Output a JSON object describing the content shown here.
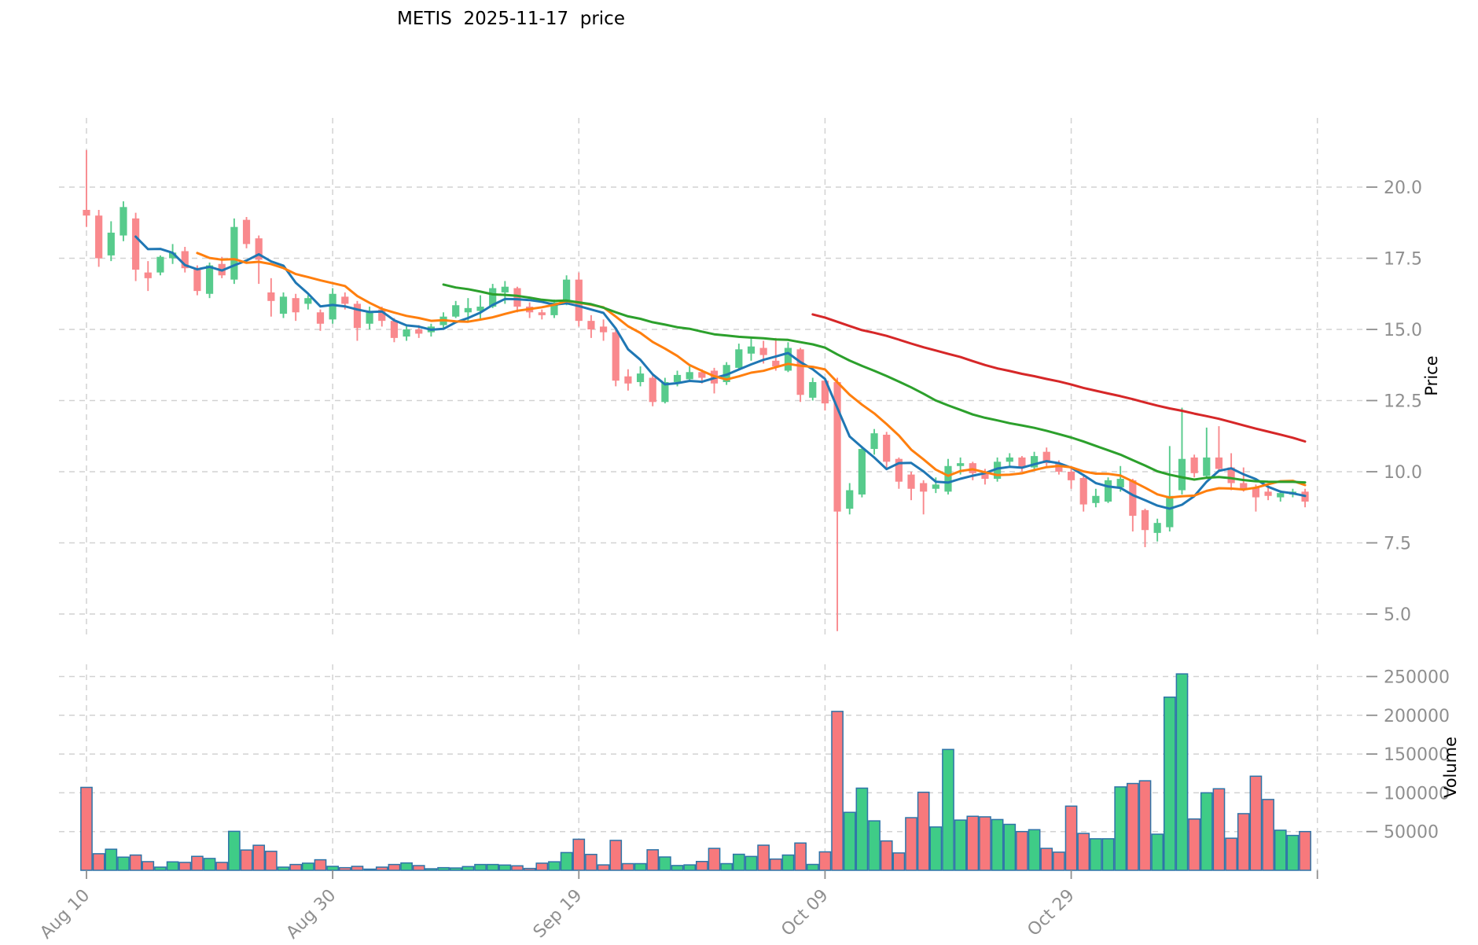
{
  "title": "METIS  2025-11-17  price",
  "price_axis": {
    "label": "Price",
    "ticks": [
      20.0,
      17.5,
      15.0,
      12.5,
      10.0,
      7.5,
      5.0
    ],
    "tick_labels": [
      "20.0",
      "17.5",
      "15.0",
      "12.5",
      "10.0",
      "7.5",
      "5.0"
    ]
  },
  "volume_axis": {
    "label": "Volume",
    "ticks": [
      250000,
      200000,
      150000,
      100000,
      50000
    ],
    "tick_labels": [
      "250000",
      "200000",
      "150000",
      "100000",
      "50000"
    ]
  },
  "x_axis": {
    "tick_days": [
      0,
      20,
      40,
      60,
      80,
      100
    ],
    "tick_labels": [
      "Aug 10",
      "Aug 30",
      "Sep 19",
      "Oct 09",
      "Oct 29",
      ""
    ]
  },
  "colors": {
    "candle_up": "#57cb8c",
    "candle_down": "#f9898d",
    "volume_up": "#3fcc87",
    "volume_down": "#f7797c",
    "volume_edge": "#2e74a8",
    "grid": "#d2d2d2",
    "tick_text": "#8f8f8f",
    "tick_mark": "#8f8f8f",
    "title_text": "#000000"
  },
  "chart_data": {
    "type": "candlestick",
    "title": "METIS  2025-11-17  price",
    "ylabel": "Price",
    "ylabel_lower": "Volume",
    "grid": "dashed",
    "price_ylim": [
      4.25,
      22.4
    ],
    "volume_ylim": [
      0,
      262000
    ],
    "moving_averages": [
      {
        "name": "sma5",
        "window": 5,
        "color": "#1f77b4"
      },
      {
        "name": "sma10",
        "window": 10,
        "color": "#ff7f0e"
      },
      {
        "name": "sma30",
        "window": 30,
        "color": "#2ca02c"
      },
      {
        "name": "sma60",
        "window": 60,
        "color": "#d62728"
      }
    ],
    "columns": [
      "date",
      "open",
      "high",
      "low",
      "close",
      "volume"
    ],
    "ohlcv": [
      [
        "2025-08-10",
        19.2,
        21.3,
        18.6,
        19.0,
        107000
      ],
      [
        "2025-08-11",
        19.0,
        19.2,
        17.2,
        17.5,
        21400
      ],
      [
        "2025-08-12",
        17.6,
        18.8,
        17.4,
        18.4,
        27200
      ],
      [
        "2025-08-13",
        18.3,
        19.5,
        18.1,
        19.3,
        17000
      ],
      [
        "2025-08-14",
        18.9,
        19.1,
        16.7,
        17.1,
        19700
      ],
      [
        "2025-08-15",
        17.0,
        17.4,
        16.35,
        16.8,
        11200
      ],
      [
        "2025-08-16",
        17.0,
        17.6,
        16.9,
        17.55,
        4100
      ],
      [
        "2025-08-17",
        17.5,
        18.0,
        17.3,
        17.7,
        10900
      ],
      [
        "2025-08-18",
        17.75,
        17.9,
        17.0,
        17.15,
        10200
      ],
      [
        "2025-08-19",
        17.15,
        17.25,
        16.2,
        16.35,
        18000
      ],
      [
        "2025-08-20",
        16.25,
        17.35,
        16.1,
        17.25,
        15300
      ],
      [
        "2025-08-21",
        17.3,
        17.55,
        16.8,
        16.9,
        10200
      ],
      [
        "2025-08-22",
        16.75,
        18.9,
        16.6,
        18.6,
        50300
      ],
      [
        "2025-08-23",
        18.85,
        18.95,
        17.85,
        18.0,
        26200
      ],
      [
        "2025-08-24",
        18.2,
        18.3,
        16.6,
        17.45,
        32300
      ],
      [
        "2025-08-25",
        16.3,
        16.8,
        15.45,
        16.0,
        24500
      ],
      [
        "2025-08-26",
        15.55,
        16.3,
        15.4,
        16.15,
        4100
      ],
      [
        "2025-08-27",
        16.1,
        16.25,
        15.3,
        15.6,
        7500
      ],
      [
        "2025-08-28",
        15.9,
        16.2,
        15.7,
        16.1,
        9200
      ],
      [
        "2025-08-29",
        15.6,
        15.7,
        14.95,
        15.2,
        13600
      ],
      [
        "2025-08-30",
        15.35,
        16.45,
        15.2,
        16.25,
        5100
      ],
      [
        "2025-08-31",
        16.15,
        16.3,
        15.7,
        15.9,
        3400
      ],
      [
        "2025-09-01",
        15.9,
        16.0,
        14.6,
        15.05,
        5100
      ],
      [
        "2025-09-02",
        15.2,
        15.8,
        15.0,
        15.65,
        1500
      ],
      [
        "2025-09-03",
        15.7,
        15.8,
        15.1,
        15.3,
        4100
      ],
      [
        "2025-09-04",
        15.3,
        15.4,
        14.55,
        14.7,
        7500
      ],
      [
        "2025-09-05",
        14.75,
        15.1,
        14.6,
        15.0,
        9500
      ],
      [
        "2025-09-06",
        15.0,
        15.15,
        14.7,
        14.85,
        6100
      ],
      [
        "2025-09-07",
        14.9,
        15.2,
        14.75,
        15.1,
        2000
      ],
      [
        "2025-09-08",
        15.15,
        15.6,
        15.05,
        15.45,
        3400
      ],
      [
        "2025-09-09",
        15.45,
        16.0,
        15.4,
        15.85,
        3000
      ],
      [
        "2025-09-10",
        15.6,
        16.1,
        15.3,
        15.75,
        4800
      ],
      [
        "2025-09-11",
        15.65,
        16.2,
        15.35,
        15.8,
        7500
      ],
      [
        "2025-09-12",
        15.8,
        16.6,
        15.75,
        16.45,
        7500
      ],
      [
        "2025-09-13",
        16.3,
        16.7,
        15.9,
        16.5,
        6800
      ],
      [
        "2025-09-14",
        16.45,
        16.5,
        15.6,
        15.8,
        5800
      ],
      [
        "2025-09-15",
        15.8,
        15.95,
        15.4,
        15.6,
        2400
      ],
      [
        "2025-09-16",
        15.6,
        15.7,
        15.35,
        15.5,
        9200
      ],
      [
        "2025-09-17",
        15.5,
        16.05,
        15.4,
        15.95,
        11000
      ],
      [
        "2025-09-18",
        15.95,
        16.9,
        15.85,
        16.75,
        22900
      ],
      [
        "2025-09-19",
        16.75,
        17.0,
        15.1,
        15.3,
        40100
      ],
      [
        "2025-09-20",
        15.3,
        15.5,
        14.7,
        15.0,
        20500
      ],
      [
        "2025-09-21",
        15.1,
        15.35,
        14.6,
        14.9,
        7000
      ],
      [
        "2025-09-22",
        14.9,
        15.0,
        13.0,
        13.2,
        38600
      ],
      [
        "2025-09-23",
        13.35,
        13.6,
        12.85,
        13.1,
        8600
      ],
      [
        "2025-09-24",
        13.15,
        13.7,
        13.0,
        13.45,
        8600
      ],
      [
        "2025-09-25",
        13.3,
        13.4,
        12.3,
        12.45,
        26500
      ],
      [
        "2025-09-26",
        12.45,
        13.3,
        12.4,
        13.15,
        17200
      ],
      [
        "2025-09-27",
        13.15,
        13.55,
        13.0,
        13.4,
        6200
      ],
      [
        "2025-09-28",
        13.25,
        13.7,
        13.15,
        13.5,
        7000
      ],
      [
        "2025-09-29",
        13.5,
        13.6,
        13.1,
        13.3,
        11400
      ],
      [
        "2025-09-30",
        13.55,
        13.65,
        12.75,
        13.1,
        28300
      ],
      [
        "2025-10-01",
        13.15,
        13.85,
        13.05,
        13.75,
        8600
      ],
      [
        "2025-10-02",
        13.65,
        14.5,
        13.6,
        14.3,
        20700
      ],
      [
        "2025-10-03",
        14.15,
        14.7,
        13.9,
        14.4,
        17900
      ],
      [
        "2025-10-04",
        14.35,
        14.6,
        13.8,
        14.1,
        32400
      ],
      [
        "2025-10-05",
        13.9,
        14.7,
        13.55,
        13.7,
        14500
      ],
      [
        "2025-10-06",
        13.55,
        14.55,
        13.5,
        14.35,
        19700
      ],
      [
        "2025-10-07",
        14.3,
        14.35,
        12.45,
        12.7,
        35200
      ],
      [
        "2025-10-08",
        12.6,
        13.3,
        12.5,
        13.15,
        7600
      ],
      [
        "2025-10-09",
        13.2,
        13.3,
        12.15,
        12.4,
        23800
      ],
      [
        "2025-10-10",
        13.15,
        13.3,
        4.4,
        8.6,
        205000
      ],
      [
        "2025-10-11",
        8.7,
        9.6,
        8.5,
        9.35,
        74800
      ],
      [
        "2025-10-12",
        9.2,
        10.9,
        9.1,
        10.8,
        106000
      ],
      [
        "2025-10-13",
        10.8,
        11.5,
        10.6,
        11.35,
        63800
      ],
      [
        "2025-10-14",
        11.3,
        11.4,
        10.1,
        10.35,
        37900
      ],
      [
        "2025-10-15",
        10.45,
        10.5,
        9.4,
        9.65,
        22400
      ],
      [
        "2025-10-16",
        9.9,
        10.0,
        9.0,
        9.4,
        67900
      ],
      [
        "2025-10-17",
        9.6,
        9.7,
        8.5,
        9.3,
        100700
      ],
      [
        "2025-10-18",
        9.4,
        9.8,
        9.25,
        9.55,
        55900
      ],
      [
        "2025-10-19",
        9.3,
        10.45,
        9.2,
        10.2,
        155900
      ],
      [
        "2025-10-20",
        10.2,
        10.5,
        9.9,
        10.3,
        64800
      ],
      [
        "2025-10-21",
        10.3,
        10.35,
        9.7,
        9.95,
        69700
      ],
      [
        "2025-10-22",
        9.95,
        10.1,
        9.55,
        9.75,
        69000
      ],
      [
        "2025-10-23",
        9.75,
        10.5,
        9.65,
        10.35,
        65500
      ],
      [
        "2025-10-24",
        10.35,
        10.65,
        10.2,
        10.5,
        59300
      ],
      [
        "2025-10-25",
        10.5,
        10.55,
        10.0,
        10.15,
        50000
      ],
      [
        "2025-10-26",
        10.15,
        10.7,
        10.05,
        10.55,
        52400
      ],
      [
        "2025-10-27",
        10.7,
        10.85,
        10.2,
        10.3,
        28300
      ],
      [
        "2025-10-28",
        10.3,
        10.4,
        9.9,
        10.0,
        23400
      ],
      [
        "2025-10-29",
        10.0,
        10.1,
        9.4,
        9.7,
        82800
      ],
      [
        "2025-10-30",
        9.78,
        9.85,
        8.6,
        8.85,
        47600
      ],
      [
        "2025-10-31",
        8.9,
        9.4,
        8.75,
        9.15,
        40700
      ],
      [
        "2025-11-01",
        8.95,
        9.8,
        8.9,
        9.7,
        40700
      ],
      [
        "2025-11-02",
        9.45,
        10.2,
        9.3,
        9.75,
        107600
      ],
      [
        "2025-11-03",
        9.7,
        9.75,
        7.9,
        8.45,
        112000
      ],
      [
        "2025-11-04",
        8.65,
        8.7,
        7.35,
        7.95,
        115500
      ],
      [
        "2025-11-05",
        7.85,
        8.35,
        7.55,
        8.2,
        46600
      ],
      [
        "2025-11-06",
        8.05,
        10.9,
        7.9,
        9.15,
        223400
      ],
      [
        "2025-11-07",
        9.35,
        12.25,
        9.2,
        10.45,
        253400
      ],
      [
        "2025-11-08",
        10.5,
        10.6,
        9.8,
        9.95,
        66200
      ],
      [
        "2025-11-09",
        9.85,
        11.55,
        9.75,
        10.5,
        100000
      ],
      [
        "2025-11-10",
        10.5,
        11.6,
        10.0,
        10.1,
        105200
      ],
      [
        "2025-11-11",
        10.15,
        10.65,
        9.35,
        9.6,
        41400
      ],
      [
        "2025-11-12",
        9.6,
        10.15,
        9.3,
        9.4,
        73100
      ],
      [
        "2025-11-13",
        9.45,
        9.55,
        8.6,
        9.1,
        121400
      ],
      [
        "2025-11-14",
        9.3,
        9.5,
        9.0,
        9.15,
        91400
      ],
      [
        "2025-11-15",
        9.1,
        9.35,
        8.95,
        9.25,
        51700
      ],
      [
        "2025-11-16",
        9.2,
        9.4,
        9.1,
        9.3,
        45000
      ],
      [
        "2025-11-17",
        9.3,
        9.4,
        8.75,
        8.95,
        50000
      ]
    ]
  }
}
